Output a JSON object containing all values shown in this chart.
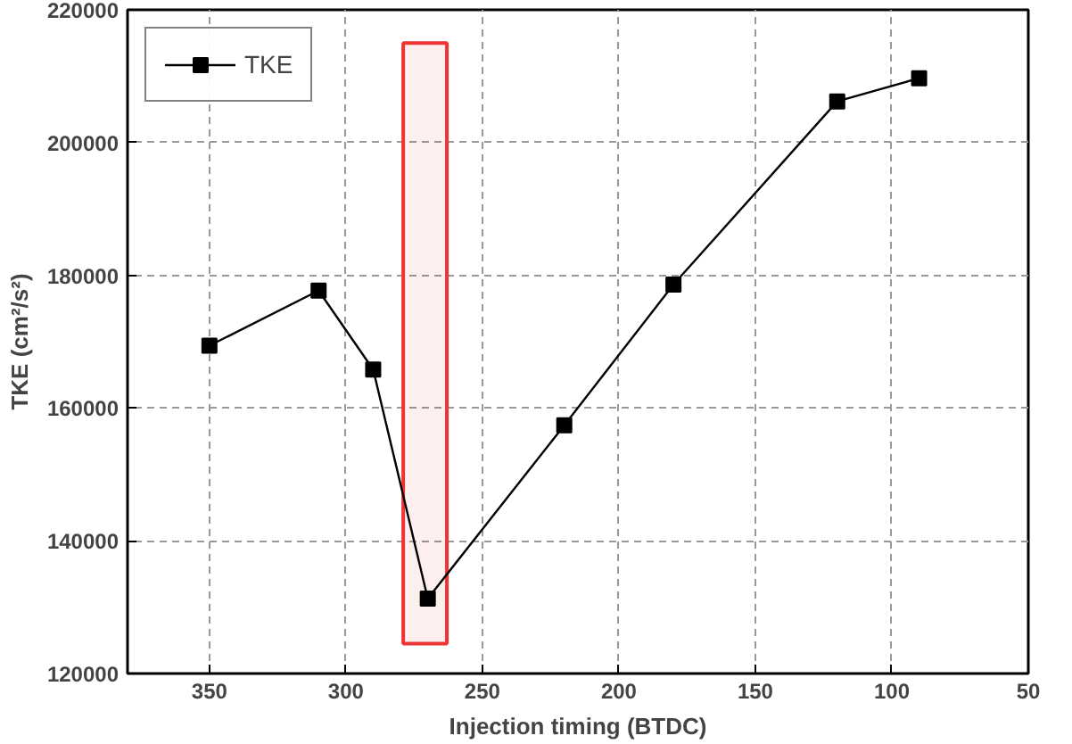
{
  "chart_data": {
    "type": "line",
    "xlabel": "Injection timing (BTDC)",
    "ylabel": "TKE (cm²/s²)",
    "x": [
      350,
      310,
      290,
      270,
      220,
      180,
      120,
      90
    ],
    "series": [
      {
        "name": "TKE",
        "color": "#000000",
        "values": [
          169400,
          177700,
          165800,
          131300,
          157400,
          178600,
          206200,
          209700
        ]
      }
    ],
    "xlim": [
      380,
      50
    ],
    "xticks": [
      350,
      300,
      250,
      200,
      150,
      100,
      50
    ],
    "ylim": [
      120000,
      220000
    ],
    "yticks": [
      120000,
      140000,
      160000,
      180000,
      200000,
      220000
    ],
    "bands": [
      {
        "axis": "x",
        "from": 279,
        "to": 263,
        "color": "#ee3333"
      }
    ],
    "grid": true,
    "legend": "top left",
    "marker": "square",
    "line_style": "solid"
  }
}
